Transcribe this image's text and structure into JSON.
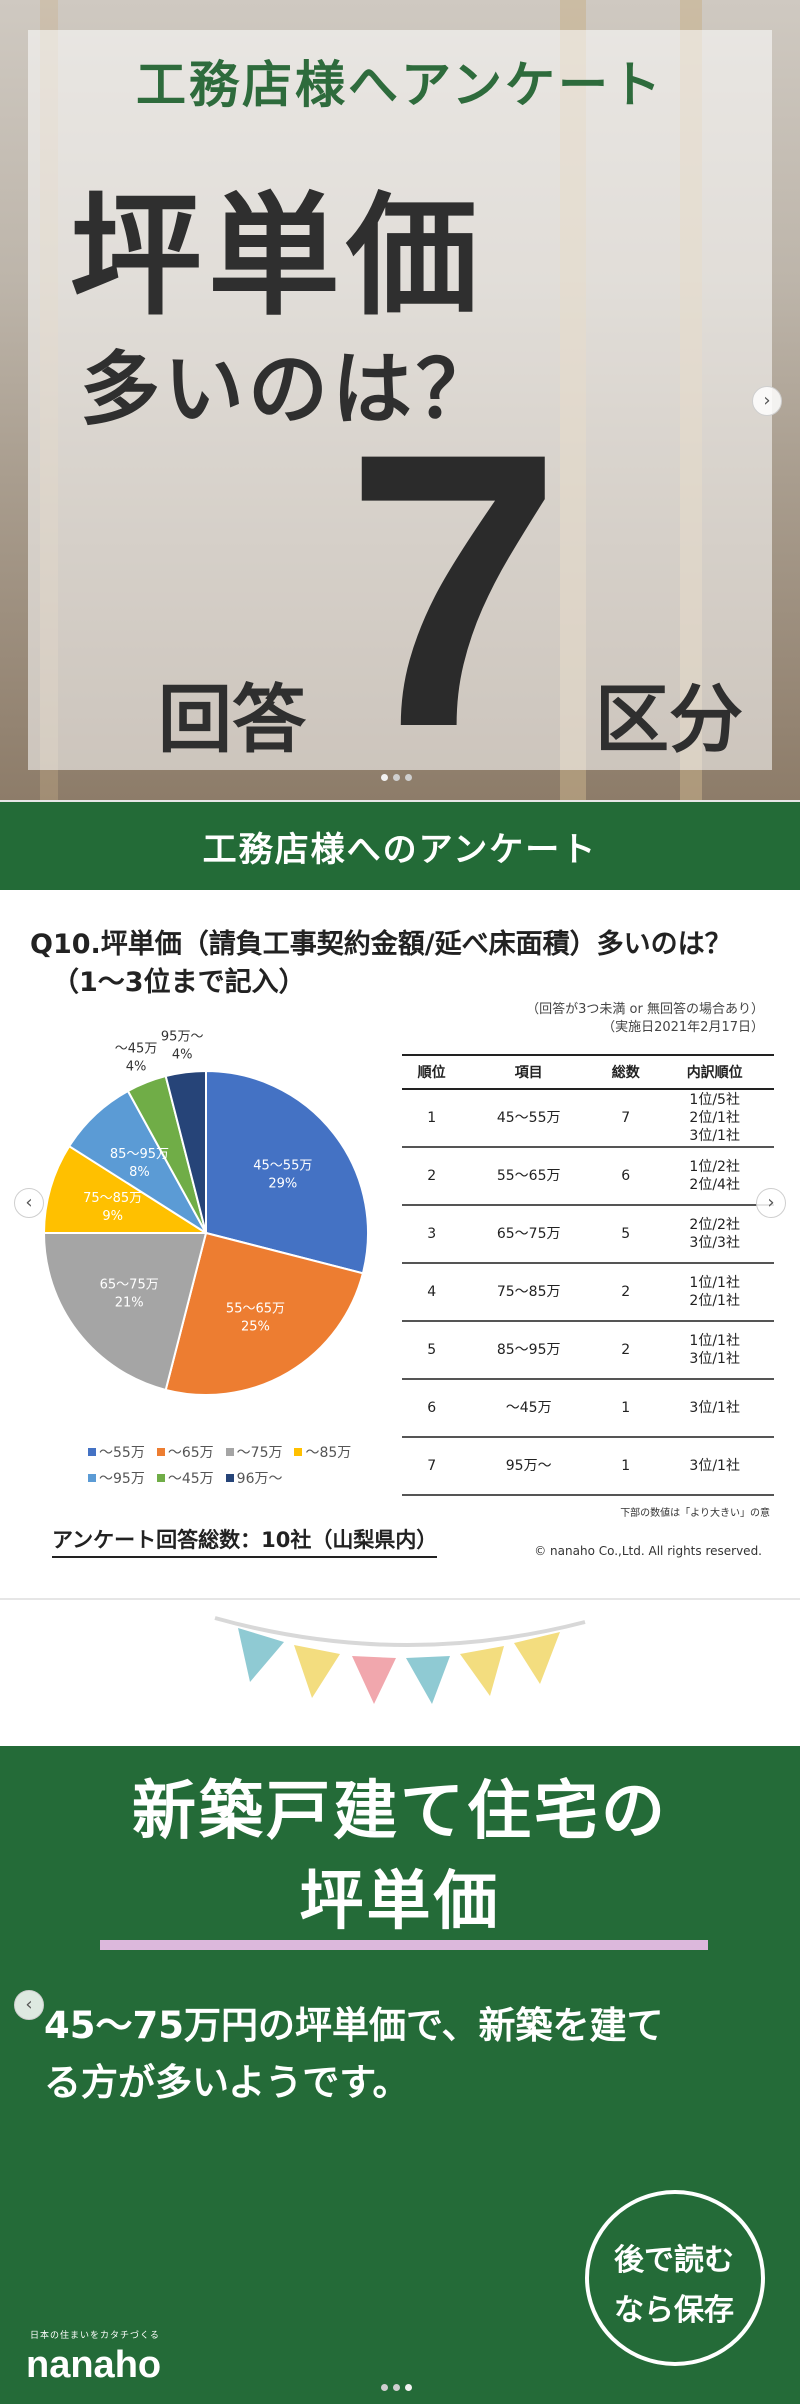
{
  "slide1": {
    "top_title": "工務店様へアンケート",
    "main_title": "坪単価",
    "sub_title": "多いのは？",
    "big_number": "7",
    "left_word": "回答",
    "right_word": "区分",
    "next_glyph": "›"
  },
  "slide2": {
    "banner": "工務店様へのアンケート",
    "question_line1": "Q10.坪単価（請負工事契約金額/延べ床面積）多いのは？",
    "question_line2": "（1～3位まで記入）",
    "note1": "（回答が3つ未満 or 無回答の場合あり）",
    "note2": "（実施日2021年2月17日）",
    "prev_glyph": "‹",
    "next_glyph": "›",
    "table_headers": [
      "順位",
      "項目",
      "総数",
      "内訳順位"
    ],
    "table_rows": [
      [
        "1",
        "45～55万",
        "7",
        "1位/5社\n2位/1社\n3位/1社"
      ],
      [
        "2",
        "55～65万",
        "6",
        "1位/2社\n2位/4社"
      ],
      [
        "3",
        "65～75万",
        "5",
        "2位/2社\n3位/3社"
      ],
      [
        "4",
        "75～85万",
        "2",
        "1位/1社\n2位/1社"
      ],
      [
        "5",
        "85～95万",
        "2",
        "1位/1社\n3位/1社"
      ],
      [
        "6",
        "～45万",
        "1",
        "3位/1社"
      ],
      [
        "7",
        "95万～",
        "1",
        "3位/1社"
      ]
    ],
    "table_note": "下部の数値は「より大きい」の意",
    "total": "アンケート回答総数：10社（山梨県内）",
    "copyright": "© nanaho Co.,Ltd. All rights reserved."
  },
  "slide3": {
    "heading1": "新築戸建て住宅の",
    "heading2": "坪単価",
    "body1": "45～75万円の坪単価で、新築を建て",
    "body2": "る方が多いようです。",
    "save1": "後で読む",
    "save2": "なら保存",
    "tagline": "日本の住まいをカタチづくる",
    "logo": "nanaho",
    "prev_glyph": "‹"
  },
  "chart_data": {
    "type": "pie",
    "slices": [
      {
        "label": "45～55万",
        "pct": "29%",
        "value": 29,
        "color": "#4472c4"
      },
      {
        "label": "55～65万",
        "pct": "25%",
        "value": 25,
        "color": "#ed7d31"
      },
      {
        "label": "65～75万",
        "pct": "21%",
        "value": 21,
        "color": "#a5a5a5"
      },
      {
        "label": "75～85万",
        "pct": "9%",
        "value": 9,
        "color": "#ffc000"
      },
      {
        "label": "85～95万",
        "pct": "8%",
        "value": 8,
        "color": "#5b9bd5"
      },
      {
        "label": "～45万",
        "pct": "4%",
        "value": 4,
        "color": "#70ad47"
      },
      {
        "label": "95万～",
        "pct": "4%",
        "value": 4,
        "color": "#264478"
      }
    ],
    "legend": [
      {
        "label": "～55万",
        "color": "#4472c4"
      },
      {
        "label": "～65万",
        "color": "#ed7d31"
      },
      {
        "label": "～75万",
        "color": "#a5a5a5"
      },
      {
        "label": "～85万",
        "color": "#ffc000"
      },
      {
        "label": "～95万",
        "color": "#5b9bd5"
      },
      {
        "label": "～45万",
        "color": "#70ad47"
      },
      {
        "label": "96万～",
        "color": "#264478"
      }
    ]
  }
}
